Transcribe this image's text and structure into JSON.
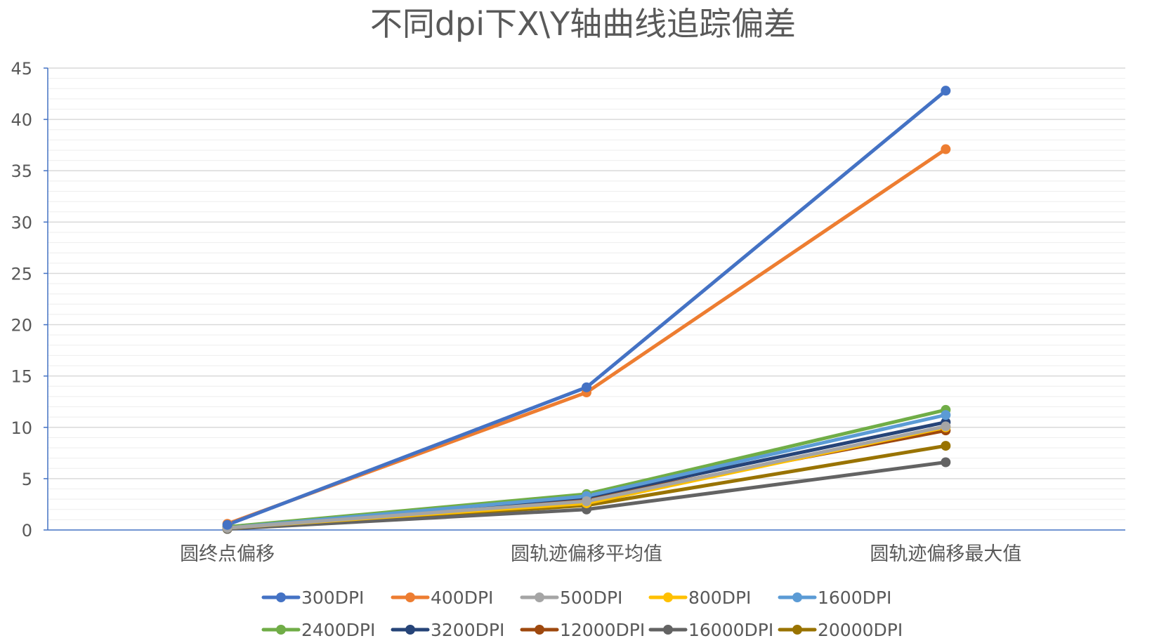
{
  "chart_data": {
    "type": "line",
    "title": "不同dpi下X\\Y轴曲线追踪偏差",
    "xlabel": "",
    "ylabel": "",
    "categories": [
      "圆终点偏移",
      "圆轨迹偏移平均值",
      "圆轨迹偏移最大值"
    ],
    "ylim": [
      0,
      45
    ],
    "yticks": [
      0,
      5,
      10,
      15,
      20,
      25,
      30,
      35,
      40,
      45
    ],
    "grid": true,
    "legend_position": "bottom",
    "series": [
      {
        "name": "300DPI",
        "color": "#4472C4",
        "values": [
          0.5,
          13.9,
          42.8
        ]
      },
      {
        "name": "400DPI",
        "color": "#ED7D31",
        "values": [
          0.6,
          13.4,
          37.1
        ]
      },
      {
        "name": "500DPI",
        "color": "#A5A5A5",
        "values": [
          0.2,
          2.8,
          10.1
        ]
      },
      {
        "name": "800DPI",
        "color": "#FFC000",
        "values": [
          0.2,
          2.6,
          10.0
        ]
      },
      {
        "name": "1600DPI",
        "color": "#5B9BD5",
        "values": [
          0.2,
          3.3,
          11.2
        ]
      },
      {
        "name": "2400DPI",
        "color": "#70AD47",
        "values": [
          0.3,
          3.5,
          11.7
        ]
      },
      {
        "name": "3200DPI",
        "color": "#264478",
        "values": [
          0.3,
          3.2,
          10.5
        ]
      },
      {
        "name": "12000DPI",
        "color": "#9E480E",
        "values": [
          0.2,
          3.0,
          9.7
        ]
      },
      {
        "name": "16000DPI",
        "color": "#636363",
        "values": [
          0.1,
          2.0,
          6.6
        ]
      },
      {
        "name": "20000DPI",
        "color": "#997300",
        "values": [
          0.1,
          2.4,
          8.2
        ]
      }
    ]
  }
}
